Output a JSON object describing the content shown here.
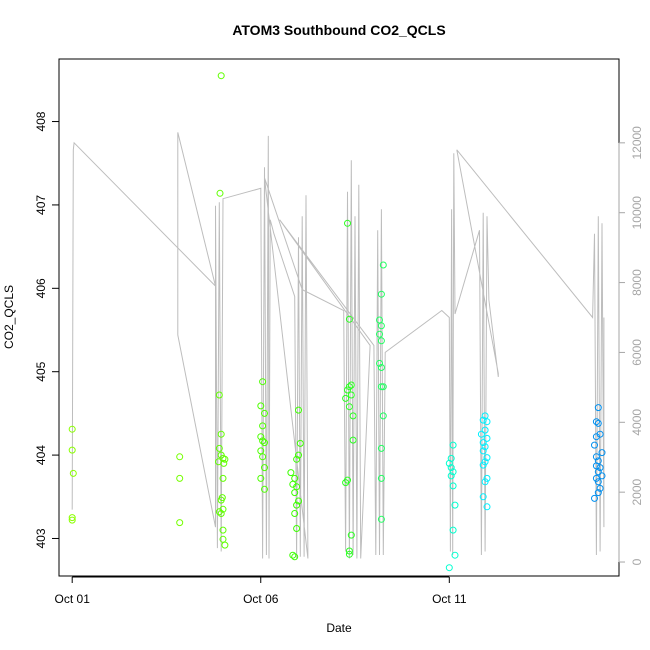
{
  "chart_data": {
    "type": "scatter",
    "title": "ATOM3 Southbound CO2_QCLS",
    "xlabel": "Date",
    "ylabel": "CO2_QCLS",
    "x_ticks": [
      {
        "label": "Oct 01",
        "day": 1.0
      },
      {
        "label": "Oct 06",
        "day": 6.0
      },
      {
        "label": "Oct 11",
        "day": 11.0
      }
    ],
    "xlim": [
      0.65,
      15.5
    ],
    "y_ticks": [
      403,
      404,
      405,
      406,
      407,
      408
    ],
    "ylim": [
      402.55,
      408.75
    ],
    "right_axis": {
      "ticks": [
        0,
        2000,
        4000,
        6000,
        8000,
        10000,
        12000
      ],
      "ylim": [
        -400,
        14400
      ],
      "color": "#a6a6a6"
    },
    "altitude_series": [
      [
        1.0,
        1500
      ],
      [
        1.03,
        11800
      ],
      [
        1.05,
        12000
      ],
      [
        4.8,
        7900
      ],
      [
        3.8,
        12300
      ],
      [
        3.8,
        6500
      ],
      [
        4.8,
        1000
      ],
      [
        4.8,
        10200
      ],
      [
        4.85,
        400
      ],
      [
        4.9,
        10300
      ],
      [
        4.95,
        300
      ],
      [
        5.0,
        10400
      ],
      [
        6.0,
        10700
      ],
      [
        6.05,
        100
      ],
      [
        6.1,
        11300
      ],
      [
        6.15,
        200
      ],
      [
        6.2,
        12200
      ],
      [
        6.22,
        100
      ],
      [
        6.25,
        9800
      ],
      [
        6.3,
        9600
      ],
      [
        6.35,
        9400
      ],
      [
        6.9,
        7600
      ],
      [
        6.95,
        100
      ],
      [
        7.0,
        9300
      ],
      [
        7.05,
        150
      ],
      [
        7.1,
        9900
      ],
      [
        7.15,
        150
      ],
      [
        7.2,
        10500
      ],
      [
        7.25,
        100
      ],
      [
        6.1,
        11000
      ],
      [
        7.1,
        7800
      ],
      [
        8.2,
        7200
      ],
      [
        8.25,
        300
      ],
      [
        8.3,
        10600
      ],
      [
        8.35,
        100
      ],
      [
        8.4,
        11500
      ],
      [
        8.45,
        200
      ],
      [
        8.5,
        9900
      ],
      [
        8.55,
        100
      ],
      [
        8.6,
        10800
      ],
      [
        8.65,
        100
      ],
      [
        8.9,
        6200
      ],
      [
        6.5,
        9800
      ],
      [
        9.0,
        6200
      ],
      [
        9.05,
        200
      ],
      [
        9.1,
        9500
      ],
      [
        9.15,
        200
      ],
      [
        9.2,
        10100
      ],
      [
        9.25,
        200
      ],
      [
        9.3,
        6000
      ],
      [
        10.8,
        7200
      ],
      [
        11.0,
        7000
      ],
      [
        11.03,
        300
      ],
      [
        11.06,
        10100
      ],
      [
        11.09,
        200
      ],
      [
        11.12,
        11700
      ],
      [
        11.15,
        7100
      ],
      [
        11.8,
        9500
      ],
      [
        11.85,
        200
      ],
      [
        11.9,
        10000
      ],
      [
        11.95,
        300
      ],
      [
        12.0,
        9900
      ],
      [
        12.05,
        7500
      ],
      [
        12.3,
        5300
      ],
      [
        12.3,
        5400
      ],
      [
        11.2,
        11800
      ],
      [
        14.8,
        7000
      ],
      [
        14.85,
        9400
      ],
      [
        14.9,
        200
      ],
      [
        14.95,
        9900
      ],
      [
        15.0,
        300
      ],
      [
        15.05,
        9700
      ],
      [
        15.1,
        1000
      ],
      [
        15.1,
        7000
      ]
    ],
    "points": [
      {
        "x": 1.0,
        "y": 404.31,
        "color": "#8aff00"
      },
      {
        "x": 1.0,
        "y": 404.06,
        "color": "#8aff00"
      },
      {
        "x": 1.03,
        "y": 403.78,
        "color": "#8aff00"
      },
      {
        "x": 1.0,
        "y": 403.25,
        "color": "#8aff00"
      },
      {
        "x": 1.0,
        "y": 403.22,
        "color": "#8aff00"
      },
      {
        "x": 3.85,
        "y": 403.98,
        "color": "#75ff00"
      },
      {
        "x": 3.85,
        "y": 403.72,
        "color": "#75ff00"
      },
      {
        "x": 3.85,
        "y": 403.19,
        "color": "#75ff00"
      },
      {
        "x": 4.95,
        "y": 408.55,
        "color": "#60ff00"
      },
      {
        "x": 4.92,
        "y": 407.14,
        "color": "#60ff00"
      },
      {
        "x": 4.9,
        "y": 404.72,
        "color": "#60ff00"
      },
      {
        "x": 4.95,
        "y": 404.25,
        "color": "#60ff00"
      },
      {
        "x": 4.9,
        "y": 404.08,
        "color": "#60ff00"
      },
      {
        "x": 4.95,
        "y": 404.0,
        "color": "#60ff00"
      },
      {
        "x": 5.0,
        "y": 403.96,
        "color": "#60ff00"
      },
      {
        "x": 4.88,
        "y": 403.92,
        "color": "#60ff00"
      },
      {
        "x": 5.02,
        "y": 403.9,
        "color": "#60ff00"
      },
      {
        "x": 5.05,
        "y": 403.95,
        "color": "#60ff00"
      },
      {
        "x": 5.0,
        "y": 403.72,
        "color": "#60ff00"
      },
      {
        "x": 4.98,
        "y": 403.49,
        "color": "#60ff00"
      },
      {
        "x": 4.95,
        "y": 403.46,
        "color": "#60ff00"
      },
      {
        "x": 4.9,
        "y": 403.32,
        "color": "#60ff00"
      },
      {
        "x": 5.0,
        "y": 403.35,
        "color": "#60ff00"
      },
      {
        "x": 4.95,
        "y": 403.3,
        "color": "#60ff00"
      },
      {
        "x": 5.0,
        "y": 403.1,
        "color": "#60ff00"
      },
      {
        "x": 5.0,
        "y": 402.99,
        "color": "#60ff00"
      },
      {
        "x": 5.05,
        "y": 402.92,
        "color": "#60ff00"
      },
      {
        "x": 6.05,
        "y": 404.88,
        "color": "#4dff00"
      },
      {
        "x": 6.0,
        "y": 404.59,
        "color": "#4dff00"
      },
      {
        "x": 6.1,
        "y": 404.5,
        "color": "#4dff00"
      },
      {
        "x": 6.05,
        "y": 404.35,
        "color": "#4dff00"
      },
      {
        "x": 6.0,
        "y": 404.22,
        "color": "#4dff00"
      },
      {
        "x": 6.05,
        "y": 404.17,
        "color": "#4dff00"
      },
      {
        "x": 6.1,
        "y": 404.15,
        "color": "#4dff00"
      },
      {
        "x": 6.0,
        "y": 404.05,
        "color": "#4dff00"
      },
      {
        "x": 6.05,
        "y": 403.98,
        "color": "#4dff00"
      },
      {
        "x": 6.1,
        "y": 403.85,
        "color": "#4dff00"
      },
      {
        "x": 6.0,
        "y": 403.72,
        "color": "#4dff00"
      },
      {
        "x": 6.1,
        "y": 403.59,
        "color": "#4dff00"
      },
      {
        "x": 7.0,
        "y": 404.54,
        "color": "#3cff00"
      },
      {
        "x": 7.05,
        "y": 404.14,
        "color": "#3cff00"
      },
      {
        "x": 7.0,
        "y": 404.0,
        "color": "#3cff00"
      },
      {
        "x": 6.95,
        "y": 403.95,
        "color": "#3cff00"
      },
      {
        "x": 6.8,
        "y": 403.79,
        "color": "#3cff00"
      },
      {
        "x": 6.9,
        "y": 403.72,
        "color": "#3cff00"
      },
      {
        "x": 6.85,
        "y": 403.65,
        "color": "#3cff00"
      },
      {
        "x": 6.95,
        "y": 403.62,
        "color": "#3cff00"
      },
      {
        "x": 6.9,
        "y": 403.55,
        "color": "#3cff00"
      },
      {
        "x": 7.0,
        "y": 403.45,
        "color": "#3cff00"
      },
      {
        "x": 6.95,
        "y": 403.4,
        "color": "#3cff00"
      },
      {
        "x": 6.9,
        "y": 403.3,
        "color": "#3cff00"
      },
      {
        "x": 6.95,
        "y": 403.12,
        "color": "#3cff00"
      },
      {
        "x": 6.85,
        "y": 402.8,
        "color": "#3cff00"
      },
      {
        "x": 6.9,
        "y": 402.78,
        "color": "#3cff00"
      },
      {
        "x": 8.3,
        "y": 406.78,
        "color": "#2aff20"
      },
      {
        "x": 8.35,
        "y": 405.63,
        "color": "#2aff20"
      },
      {
        "x": 8.4,
        "y": 404.84,
        "color": "#2aff20"
      },
      {
        "x": 8.35,
        "y": 404.82,
        "color": "#2aff20"
      },
      {
        "x": 8.3,
        "y": 404.78,
        "color": "#2aff20"
      },
      {
        "x": 8.4,
        "y": 404.72,
        "color": "#2aff20"
      },
      {
        "x": 8.25,
        "y": 404.68,
        "color": "#2aff20"
      },
      {
        "x": 8.35,
        "y": 404.58,
        "color": "#2aff20"
      },
      {
        "x": 8.45,
        "y": 404.47,
        "color": "#2aff20"
      },
      {
        "x": 8.45,
        "y": 404.18,
        "color": "#2aff20"
      },
      {
        "x": 8.3,
        "y": 403.7,
        "color": "#2aff20"
      },
      {
        "x": 8.25,
        "y": 403.67,
        "color": "#2aff20"
      },
      {
        "x": 8.4,
        "y": 403.04,
        "color": "#2aff20"
      },
      {
        "x": 8.35,
        "y": 402.85,
        "color": "#2aff20"
      },
      {
        "x": 8.35,
        "y": 402.81,
        "color": "#2aff20"
      },
      {
        "x": 9.25,
        "y": 406.28,
        "color": "#20ff60"
      },
      {
        "x": 9.2,
        "y": 405.93,
        "color": "#20ff60"
      },
      {
        "x": 9.15,
        "y": 405.62,
        "color": "#20ff60"
      },
      {
        "x": 9.2,
        "y": 405.55,
        "color": "#20ff60"
      },
      {
        "x": 9.15,
        "y": 405.45,
        "color": "#20ff60"
      },
      {
        "x": 9.2,
        "y": 405.37,
        "color": "#20ff60"
      },
      {
        "x": 9.15,
        "y": 405.1,
        "color": "#20ff60"
      },
      {
        "x": 9.2,
        "y": 405.05,
        "color": "#20ff60"
      },
      {
        "x": 9.2,
        "y": 404.82,
        "color": "#20ff60"
      },
      {
        "x": 9.25,
        "y": 404.82,
        "color": "#20ff60"
      },
      {
        "x": 9.25,
        "y": 404.47,
        "color": "#20ff60"
      },
      {
        "x": 9.2,
        "y": 404.08,
        "color": "#20ff60"
      },
      {
        "x": 9.2,
        "y": 403.72,
        "color": "#20ff60"
      },
      {
        "x": 9.2,
        "y": 403.23,
        "color": "#20ff60"
      },
      {
        "x": 11.1,
        "y": 404.12,
        "color": "#00ffd0"
      },
      {
        "x": 11.05,
        "y": 403.96,
        "color": "#00ffd0"
      },
      {
        "x": 11.0,
        "y": 403.9,
        "color": "#00ffd0"
      },
      {
        "x": 11.05,
        "y": 403.85,
        "color": "#00ffd0"
      },
      {
        "x": 11.1,
        "y": 403.8,
        "color": "#00ffd0"
      },
      {
        "x": 11.05,
        "y": 403.75,
        "color": "#00ffd0"
      },
      {
        "x": 11.1,
        "y": 403.63,
        "color": "#00ffd0"
      },
      {
        "x": 11.15,
        "y": 403.4,
        "color": "#00ffd0"
      },
      {
        "x": 11.1,
        "y": 403.1,
        "color": "#00ffd0"
      },
      {
        "x": 11.15,
        "y": 402.8,
        "color": "#00ffd0"
      },
      {
        "x": 11.0,
        "y": 402.65,
        "color": "#00ffd0"
      },
      {
        "x": 11.95,
        "y": 404.47,
        "color": "#00f0ff"
      },
      {
        "x": 11.9,
        "y": 404.42,
        "color": "#00f0ff"
      },
      {
        "x": 12.0,
        "y": 404.4,
        "color": "#00f0ff"
      },
      {
        "x": 11.95,
        "y": 404.3,
        "color": "#00f0ff"
      },
      {
        "x": 11.85,
        "y": 404.25,
        "color": "#00f0ff"
      },
      {
        "x": 12.0,
        "y": 404.2,
        "color": "#00f0ff"
      },
      {
        "x": 11.9,
        "y": 404.15,
        "color": "#00f0ff"
      },
      {
        "x": 11.95,
        "y": 404.1,
        "color": "#00f0ff"
      },
      {
        "x": 11.9,
        "y": 404.05,
        "color": "#00f0ff"
      },
      {
        "x": 12.0,
        "y": 403.97,
        "color": "#00f0ff"
      },
      {
        "x": 11.95,
        "y": 403.92,
        "color": "#00f0ff"
      },
      {
        "x": 11.9,
        "y": 403.88,
        "color": "#00f0ff"
      },
      {
        "x": 12.0,
        "y": 403.72,
        "color": "#00f0ff"
      },
      {
        "x": 11.95,
        "y": 403.68,
        "color": "#00f0ff"
      },
      {
        "x": 11.9,
        "y": 403.5,
        "color": "#00f0ff"
      },
      {
        "x": 12.0,
        "y": 403.38,
        "color": "#00f0ff"
      },
      {
        "x": 14.95,
        "y": 404.57,
        "color": "#0090f0"
      },
      {
        "x": 14.9,
        "y": 404.4,
        "color": "#0090f0"
      },
      {
        "x": 14.95,
        "y": 404.38,
        "color": "#0090f0"
      },
      {
        "x": 15.0,
        "y": 404.25,
        "color": "#0090f0"
      },
      {
        "x": 14.9,
        "y": 404.22,
        "color": "#0090f0"
      },
      {
        "x": 14.85,
        "y": 404.12,
        "color": "#0090f0"
      },
      {
        "x": 15.05,
        "y": 404.03,
        "color": "#0090f0"
      },
      {
        "x": 14.9,
        "y": 403.98,
        "color": "#0090f0"
      },
      {
        "x": 14.95,
        "y": 403.93,
        "color": "#0090f0"
      },
      {
        "x": 14.9,
        "y": 403.87,
        "color": "#0090f0"
      },
      {
        "x": 15.0,
        "y": 403.85,
        "color": "#0090f0"
      },
      {
        "x": 14.95,
        "y": 403.8,
        "color": "#0090f0"
      },
      {
        "x": 15.05,
        "y": 403.75,
        "color": "#0090f0"
      },
      {
        "x": 14.9,
        "y": 403.72,
        "color": "#0090f0"
      },
      {
        "x": 14.95,
        "y": 403.68,
        "color": "#0090f0"
      },
      {
        "x": 15.0,
        "y": 403.6,
        "color": "#0090f0"
      },
      {
        "x": 14.95,
        "y": 403.55,
        "color": "#0090f0"
      },
      {
        "x": 14.85,
        "y": 403.48,
        "color": "#0090f0"
      }
    ]
  }
}
